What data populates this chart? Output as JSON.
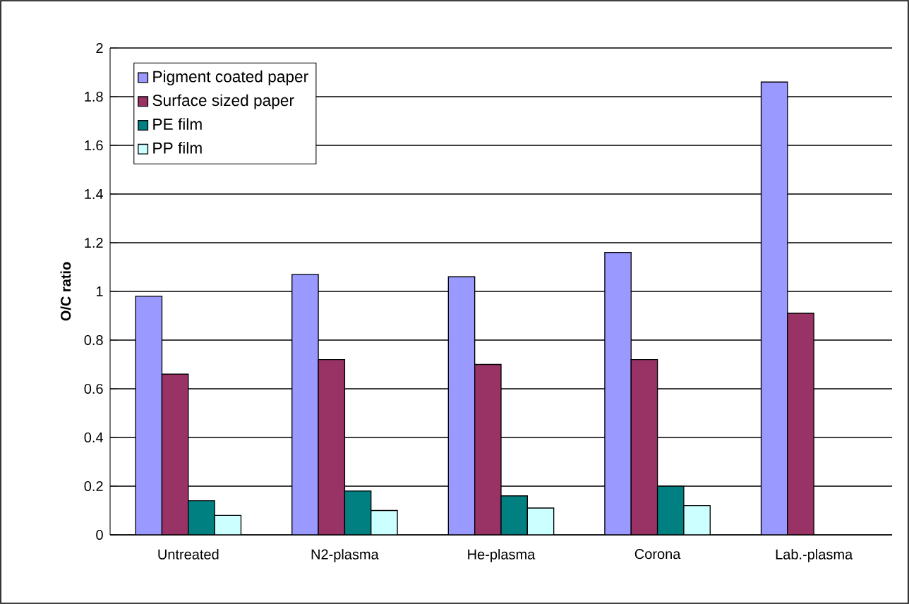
{
  "chart_data": {
    "type": "bar",
    "ylabel": "O/C ratio",
    "categories": [
      "Untreated",
      "N2-plasma",
      "He-plasma",
      "Corona",
      "Lab.-plasma"
    ],
    "series": [
      {
        "name": "Pigment coated paper",
        "color": "#9999ff",
        "values": [
          0.98,
          1.07,
          1.06,
          1.16,
          1.86
        ]
      },
      {
        "name": "Surface sized paper",
        "color": "#993366",
        "values": [
          0.66,
          0.72,
          0.7,
          0.72,
          0.91
        ]
      },
      {
        "name": "PE film",
        "color": "#008080",
        "values": [
          0.14,
          0.18,
          0.16,
          0.2,
          null
        ]
      },
      {
        "name": "PP film",
        "color": "#ccffff",
        "values": [
          0.08,
          0.1,
          0.11,
          0.12,
          null
        ]
      }
    ],
    "ylim": [
      0,
      2
    ],
    "yticks": [
      0,
      0.2,
      0.4,
      0.6,
      0.8,
      1,
      1.2,
      1.4,
      1.6,
      1.8,
      2
    ],
    "grid": "y",
    "legend": "top left"
  }
}
